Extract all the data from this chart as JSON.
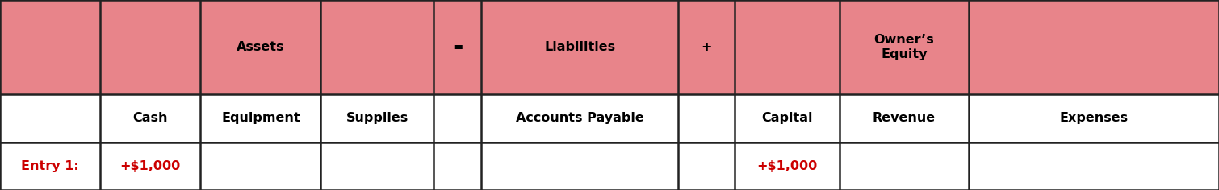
{
  "fig_width": 15.1,
  "fig_height": 2.36,
  "dpi": 100,
  "background_color": "#ffffff",
  "header_bg_color": "#E8848A",
  "border_color": "#222222",
  "red_text_color": "#CC0000",
  "black_text_color": "#000000",
  "col_starts": [
    0.0,
    0.0822,
    0.1644,
    0.2632,
    0.3554,
    0.395,
    0.5563,
    0.6026,
    0.6887,
    0.7947
  ],
  "col_ends": [
    0.0822,
    0.1644,
    0.2632,
    0.3554,
    0.395,
    0.5563,
    0.6026,
    0.6887,
    0.7947,
    1.0
  ],
  "row_tops": [
    1.0,
    0.505,
    0.25
  ],
  "row_bottoms": [
    0.505,
    0.25,
    0.0
  ],
  "header1_labels": [
    "",
    "",
    "Assets",
    "",
    "=",
    "Liabilities",
    "+",
    "",
    "Owner’s\nEquity",
    ""
  ],
  "header2_labels": [
    "",
    "Cash",
    "Equipment",
    "Supplies",
    "",
    "Accounts Payable",
    "",
    "Capital",
    "Revenue",
    "Expenses"
  ],
  "data_labels": [
    "Entry 1:",
    "+$1,000",
    "",
    "",
    "",
    "",
    "",
    "+$1,000",
    "",
    ""
  ],
  "data_text_colors": [
    "#CC0000",
    "#CC0000",
    "#000000",
    "#000000",
    "#000000",
    "#000000",
    "#000000",
    "#CC0000",
    "#000000",
    "#000000"
  ],
  "fontsize": 11.5,
  "lw": 1.8
}
